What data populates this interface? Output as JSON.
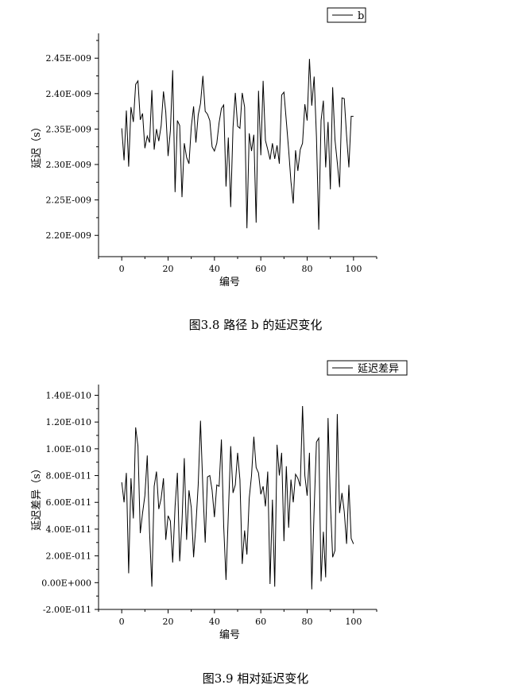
{
  "figure1": {
    "caption": "图3.8  路径 b 的延迟变化",
    "chart_data": {
      "type": "line",
      "xlabel": "编号",
      "ylabel": "延迟（s）",
      "xlim": [
        -10,
        110
      ],
      "ylim": [
        2.17e-09,
        2.485e-09
      ],
      "xticks": [
        0,
        20,
        40,
        60,
        80,
        100
      ],
      "yticks": [
        2.2e-09,
        2.25e-09,
        2.3e-09,
        2.35e-09,
        2.4e-09,
        2.45e-09
      ],
      "ytick_labels": [
        "2.20E-009",
        "2.25E-009",
        "2.30E-009",
        "2.35E-009",
        "2.40E-009",
        "2.45E-009"
      ],
      "legend": "top-right",
      "grid": false,
      "series": [
        {
          "name": "b",
          "color": "#000000",
          "x": [
            0,
            1,
            2,
            3,
            4,
            5,
            6,
            7,
            8,
            9,
            10,
            11,
            12,
            13,
            14,
            15,
            16,
            17,
            18,
            19,
            20,
            21,
            22,
            23,
            24,
            25,
            26,
            27,
            28,
            29,
            30,
            31,
            32,
            33,
            34,
            35,
            36,
            37,
            38,
            39,
            40,
            41,
            42,
            43,
            44,
            45,
            46,
            47,
            48,
            49,
            50,
            51,
            52,
            53,
            54,
            55,
            56,
            57,
            58,
            59,
            60,
            61,
            62,
            63,
            64,
            65,
            66,
            67,
            68,
            69,
            70,
            71,
            72,
            73,
            74,
            75,
            76,
            77,
            78,
            79,
            80,
            81,
            82,
            83,
            84,
            85,
            86,
            87,
            88,
            89,
            90,
            91,
            92,
            93,
            94,
            95,
            96,
            97,
            98,
            99,
            100
          ],
          "y": [
            2.351e-09,
            2.306e-09,
            2.376e-09,
            2.297e-09,
            2.381e-09,
            2.36e-09,
            2.413e-09,
            2.418e-09,
            2.363e-09,
            2.372e-09,
            2.323e-09,
            2.34e-09,
            2.331e-09,
            2.405e-09,
            2.321e-09,
            2.35e-09,
            2.333e-09,
            2.355e-09,
            2.403e-09,
            2.374e-09,
            2.312e-09,
            2.348e-09,
            2.433e-09,
            2.261e-09,
            2.362e-09,
            2.355e-09,
            2.254e-09,
            2.33e-09,
            2.31e-09,
            2.301e-09,
            2.353e-09,
            2.382e-09,
            2.331e-09,
            2.37e-09,
            2.386e-09,
            2.425e-09,
            2.375e-09,
            2.371e-09,
            2.362e-09,
            2.325e-09,
            2.319e-09,
            2.33e-09,
            2.359e-09,
            2.379e-09,
            2.384e-09,
            2.269e-09,
            2.338e-09,
            2.24e-09,
            2.352e-09,
            2.401e-09,
            2.354e-09,
            2.351e-09,
            2.401e-09,
            2.381e-09,
            2.21e-09,
            2.344e-09,
            2.319e-09,
            2.342e-09,
            2.218e-09,
            2.404e-09,
            2.313e-09,
            2.418e-09,
            2.334e-09,
            2.321e-09,
            2.307e-09,
            2.33e-09,
            2.308e-09,
            2.327e-09,
            2.301e-09,
            2.398e-09,
            2.402e-09,
            2.361e-09,
            2.321e-09,
            2.276e-09,
            2.245e-09,
            2.32e-09,
            2.291e-09,
            2.321e-09,
            2.33e-09,
            2.385e-09,
            2.362e-09,
            2.449e-09,
            2.383e-09,
            2.424e-09,
            2.339e-09,
            2.208e-09,
            2.362e-09,
            2.39e-09,
            2.296e-09,
            2.36e-09,
            2.265e-09,
            2.409e-09,
            2.335e-09,
            2.303e-09,
            2.268e-09,
            2.394e-09,
            2.393e-09,
            2.341e-09,
            2.296e-09,
            2.368e-09,
            2.368e-09
          ]
        }
      ]
    }
  },
  "figure2": {
    "caption": "图3.9  相对延迟变化",
    "chart_data": {
      "type": "line",
      "xlabel": "编号",
      "ylabel": "延迟差异（s）",
      "xlim": [
        -10,
        110
      ],
      "ylim": [
        -2e-11,
        1.48e-10
      ],
      "xticks": [
        0,
        20,
        40,
        60,
        80,
        100
      ],
      "yticks": [
        -2e-11,
        0,
        2e-11,
        4e-11,
        6e-11,
        8e-11,
        1e-10,
        1.2e-10,
        1.4e-10
      ],
      "ytick_labels": [
        "-2.00E-011",
        "0.00E+000",
        "2.00E-011",
        "4.00E-011",
        "6.00E-011",
        "8.00E-011",
        "1.00E-010",
        "1.20E-010",
        "1.40E-010"
      ],
      "legend": "top-right",
      "grid": false,
      "series": [
        {
          "name": "延迟差异",
          "color": "#000000",
          "x": [
            0,
            1,
            2,
            3,
            4,
            5,
            6,
            7,
            8,
            9,
            10,
            11,
            12,
            13,
            14,
            15,
            16,
            17,
            18,
            19,
            20,
            21,
            22,
            23,
            24,
            25,
            26,
            27,
            28,
            29,
            30,
            31,
            32,
            33,
            34,
            35,
            36,
            37,
            38,
            39,
            40,
            41,
            42,
            43,
            44,
            45,
            46,
            47,
            48,
            49,
            50,
            51,
            52,
            53,
            54,
            55,
            56,
            57,
            58,
            59,
            60,
            61,
            62,
            63,
            64,
            65,
            66,
            67,
            68,
            69,
            70,
            71,
            72,
            73,
            74,
            75,
            76,
            77,
            78,
            79,
            80,
            81,
            82,
            83,
            84,
            85,
            86,
            87,
            88,
            89,
            90,
            91,
            92,
            93,
            94,
            95,
            96,
            97,
            98,
            99,
            100
          ],
          "y": [
            7.5e-11,
            6e-11,
            8.2e-11,
            7e-12,
            7.8e-11,
            4.8e-11,
            1.16e-10,
            1.02e-10,
            3.7e-11,
            5.2e-11,
            6.5e-11,
            9.5e-11,
            3.8e-11,
            -3e-12,
            7.2e-11,
            8.3e-11,
            5.5e-11,
            6.3e-11,
            7.8e-11,
            3.2e-11,
            5e-11,
            4.6e-11,
            1.5e-11,
            5.7e-11,
            8.2e-11,
            1.6e-11,
            4.5e-11,
            9.3e-11,
            3.2e-11,
            6.9e-11,
            5.6e-11,
            1.9e-11,
            4.3e-11,
            7.3e-11,
            1.21e-10,
            7e-11,
            3e-11,
            7.9e-11,
            8e-11,
            6.9e-11,
            4.9e-11,
            7.3e-11,
            7.2e-11,
            1.07e-10,
            4.2e-11,
            2e-12,
            5.1e-11,
            1.02e-10,
            6.7e-11,
            7.3e-11,
            9.7e-11,
            7.7e-11,
            1.4e-11,
            3.9e-11,
            2.1e-11,
            6.3e-11,
            8e-11,
            1.09e-10,
            8.6e-11,
            8.2e-11,
            6.6e-11,
            7.2e-11,
            5.7e-11,
            8.3e-11,
            -1e-12,
            6.2e-11,
            -3e-12,
            1.03e-10,
            8e-11,
            9.7e-11,
            3.1e-11,
            8.7e-11,
            4.1e-11,
            7.7e-11,
            6e-11,
            8.1e-11,
            7.8e-11,
            7.2e-11,
            1.32e-10,
            8e-11,
            6.5e-11,
            9.7e-11,
            -5e-12,
            5.5e-11,
            1.05e-10,
            1.08e-10,
            1e-12,
            3.8e-11,
            4e-12,
            1.23e-10,
            6e-11,
            1.9e-11,
            2.4e-11,
            1.26e-10,
            5.2e-11,
            6.7e-11,
            5.3e-11,
            2.9e-11,
            7.3e-11,
            3.3e-11,
            2.9e-11
          ]
        }
      ]
    }
  }
}
